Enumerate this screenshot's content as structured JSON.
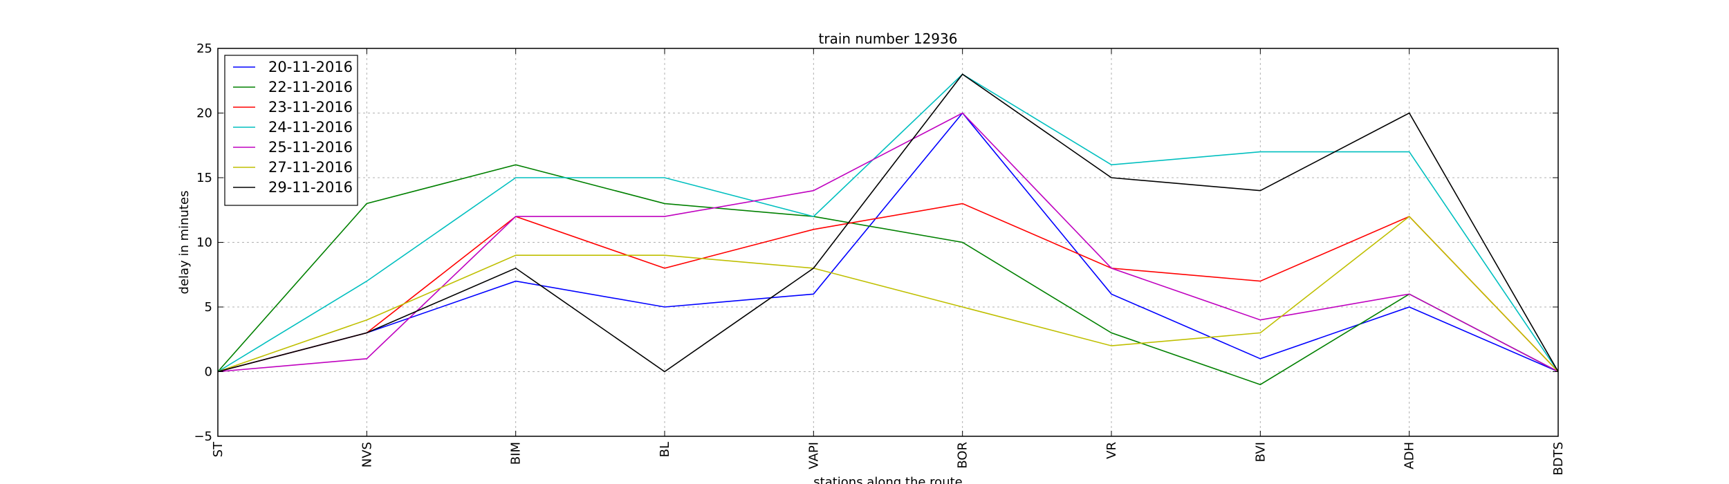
{
  "chart_data": {
    "type": "line",
    "title": "train number 12936",
    "xlabel": "stations along the route",
    "ylabel": "delay in minutes",
    "categories": [
      "ST",
      "NVS",
      "BIM",
      "BL",
      "VAPI",
      "BOR",
      "VR",
      "BVI",
      "ADH",
      "BDTS"
    ],
    "ylim": [
      -5,
      25
    ],
    "yticks": [
      -5,
      0,
      5,
      10,
      15,
      20,
      25
    ],
    "ytick_labels": [
      "−5",
      "0",
      "5",
      "10",
      "15",
      "20",
      "25"
    ],
    "grid": true,
    "legend_position": "top-left",
    "series": [
      {
        "name": "20-11-2016",
        "color": "#0000ff",
        "values": [
          0,
          3,
          7,
          5,
          6,
          20,
          6,
          1,
          5,
          0
        ]
      },
      {
        "name": "22-11-2016",
        "color": "#008000",
        "values": [
          0,
          13,
          16,
          13,
          12,
          10,
          3,
          -1,
          6,
          0
        ]
      },
      {
        "name": "23-11-2016",
        "color": "#ff0000",
        "values": [
          0,
          3,
          12,
          8,
          11,
          13,
          8,
          7,
          12,
          0
        ]
      },
      {
        "name": "24-11-2016",
        "color": "#00bfbf",
        "values": [
          0,
          7,
          15,
          15,
          12,
          23,
          16,
          17,
          17,
          0
        ]
      },
      {
        "name": "25-11-2016",
        "color": "#bf00bf",
        "values": [
          0,
          1,
          12,
          12,
          14,
          20,
          8,
          4,
          6,
          0
        ]
      },
      {
        "name": "27-11-2016",
        "color": "#bfbf00",
        "values": [
          0,
          4,
          9,
          9,
          8,
          5,
          2,
          3,
          12,
          0
        ]
      },
      {
        "name": "29-11-2016",
        "color": "#000000",
        "values": [
          0,
          3,
          8,
          0,
          8,
          23,
          15,
          14,
          20,
          0
        ]
      }
    ]
  }
}
